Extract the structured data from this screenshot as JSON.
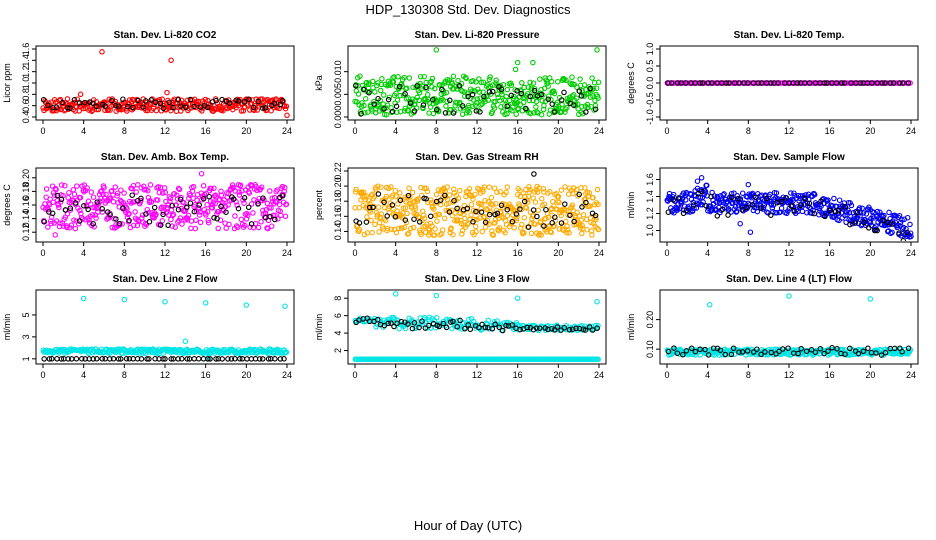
{
  "figure": {
    "title": "HDP_130308  Std. Dev. Diagnostics",
    "xlabel": "Hour of Day (UTC)"
  },
  "chart_data": [
    {
      "type": "scatter",
      "title": "Stan. Dev. Li-820 CO2",
      "ylabel": "Licor ppm",
      "xlim": [
        0,
        24
      ],
      "ylim": [
        0.4,
        1.6
      ],
      "xticks": [
        0,
        4,
        8,
        12,
        16,
        20,
        24
      ],
      "yticks": [
        0.4,
        0.6,
        0.8,
        1.0,
        1.2,
        1.4,
        1.6
      ],
      "ytick_labels": [
        "0.4",
        "0.6",
        "0.8",
        "1.0",
        "1.2",
        "1.4",
        "1.6"
      ],
      "series": [
        {
          "color": "#ff0000",
          "band": [
            0.5,
            0.72
          ],
          "count": 300,
          "outliers": [
            [
              5.8,
              1.55
            ],
            [
              12.6,
              1.4
            ],
            [
              12.2,
              0.83
            ],
            [
              24,
              0.43
            ],
            [
              3.7,
              0.8
            ]
          ]
        },
        {
          "color": "#000000",
          "band": [
            0.55,
            0.72
          ],
          "count": 55,
          "outliers": []
        }
      ]
    },
    {
      "type": "scatter",
      "title": "Stan. Dev. Li-820 Pressure",
      "ylabel": "kPa",
      "xlim": [
        0,
        24
      ],
      "ylim": [
        0,
        0.015
      ],
      "xticks": [
        0,
        4,
        8,
        12,
        16,
        20,
        24
      ],
      "yticks": [
        0,
        0.005,
        0.01
      ],
      "ytick_labels": [
        "0.000",
        "0.005",
        "0.010"
      ],
      "series": [
        {
          "color": "#00cc00",
          "band": [
            0.0005,
            0.009
          ],
          "count": 420,
          "outliers": [
            [
              8,
              0.0148
            ],
            [
              23.8,
              0.0148
            ],
            [
              16,
              0.012
            ],
            [
              17.5,
              0.012
            ],
            [
              15.8,
              0.0105
            ]
          ]
        },
        {
          "color": "#000000",
          "band": [
            0.0005,
            0.007
          ],
          "count": 55,
          "outliers": []
        }
      ]
    },
    {
      "type": "scatter",
      "title": "Stan. Dev. Li-820 Temp.",
      "ylabel": "degrees C",
      "xlim": [
        0,
        24
      ],
      "ylim": [
        -1,
        1
      ],
      "xticks": [
        0,
        4,
        8,
        12,
        16,
        20,
        24
      ],
      "yticks": [
        -1,
        -0.5,
        0,
        0.5,
        1
      ],
      "ytick_labels": [
        "-1.0",
        "-0.5",
        "0.0",
        "0.5",
        "1.0"
      ],
      "series": [
        {
          "color": "#ff00ff",
          "band": [
            0,
            0
          ],
          "count": 180,
          "outliers": []
        },
        {
          "color": "#000000",
          "band": [
            0,
            0
          ],
          "count": 55,
          "outliers": []
        }
      ]
    },
    {
      "type": "scatter",
      "title": "Stan. Dev. Amb. Box Temp.",
      "ylabel": "degrees C",
      "xlim": [
        0,
        24
      ],
      "ylim": [
        0.11,
        0.21
      ],
      "xticks": [
        0,
        4,
        8,
        12,
        16,
        20,
        24
      ],
      "yticks": [
        0.12,
        0.14,
        0.16,
        0.18,
        0.2
      ],
      "ytick_labels": [
        "0.12",
        "0.14",
        "0.16",
        "0.18",
        "0.20"
      ],
      "series": [
        {
          "color": "#ff00ff",
          "band": [
            0.125,
            0.19
          ],
          "count": 420,
          "outliers": [
            [
              15.6,
              0.206
            ],
            [
              1.2,
              0.116
            ]
          ]
        },
        {
          "color": "#000000",
          "band": [
            0.13,
            0.175
          ],
          "count": 55,
          "outliers": []
        }
      ]
    },
    {
      "type": "scatter",
      "title": "Stan. Dev. Gas Stream RH",
      "ylabel": "percent",
      "xlim": [
        0,
        24
      ],
      "ylim": [
        0.13,
        0.22
      ],
      "xticks": [
        0,
        4,
        8,
        12,
        16,
        20,
        24
      ],
      "yticks": [
        0.14,
        0.16,
        0.18,
        0.2,
        0.22
      ],
      "ytick_labels": [
        "0.14",
        "0.16",
        "0.18",
        "0.20",
        "0.22"
      ],
      "series": [
        {
          "color": "#ffaa00",
          "band": [
            0.135,
            0.2
          ],
          "count": 480,
          "outliers": []
        },
        {
          "color": "#000000",
          "band": [
            0.145,
            0.19
          ],
          "count": 55,
          "outliers": [
            [
              17.6,
              0.216
            ]
          ]
        }
      ]
    },
    {
      "type": "scatter",
      "title": "Stan. Dev. Sample Flow",
      "ylabel": "ml/min",
      "xlim": [
        0,
        24
      ],
      "ylim": [
        0.9,
        1.7
      ],
      "xticks": [
        0,
        4,
        8,
        12,
        16,
        20,
        24
      ],
      "yticks": [
        1.0,
        1.2,
        1.4,
        1.6
      ],
      "ytick_labels": [
        "1.0",
        "1.2",
        "1.4",
        "1.6"
      ],
      "series": [
        {
          "color": "#0000ee",
          "band": [
            1.2,
            1.45
          ],
          "count": 420,
          "trend": "flow",
          "outliers": [
            [
              3.0,
              1.58
            ],
            [
              3.4,
              1.62
            ],
            [
              8.0,
              1.54
            ],
            [
              7.2,
              1.08
            ],
            [
              8.2,
              0.98
            ],
            [
              24,
              0.93
            ]
          ]
        },
        {
          "color": "#000000",
          "band": [
            1.15,
            1.4
          ],
          "count": 50,
          "trend": "flow",
          "outliers": []
        }
      ]
    },
    {
      "type": "scatter",
      "title": "Stan. Dev. Line 2 Flow",
      "ylabel": "ml/min",
      "xlim": [
        0,
        24
      ],
      "ylim": [
        0.8,
        7
      ],
      "xticks": [
        0,
        4,
        8,
        12,
        16,
        20,
        24
      ],
      "yticks": [
        1,
        3,
        5
      ],
      "ytick_labels": [
        "1",
        "3",
        "5"
      ],
      "series": [
        {
          "color": "#00e5e5",
          "band": [
            1.5,
            1.9
          ],
          "count": 300,
          "outliers": [
            [
              4,
              6.5
            ],
            [
              8,
              6.4
            ],
            [
              12,
              6.2
            ],
            [
              16,
              6.1
            ],
            [
              20,
              5.9
            ],
            [
              23.8,
              5.8
            ],
            [
              14,
              2.6
            ],
            [
              16.3,
              1.0
            ]
          ]
        },
        {
          "color": "#000000",
          "band": [
            0.99,
            1.0
          ],
          "count": 60,
          "outliers": []
        }
      ]
    },
    {
      "type": "scatter",
      "title": "Stan. Dev. Line 3 Flow",
      "ylabel": "ml/min",
      "xlim": [
        0,
        24
      ],
      "ylim": [
        0.8,
        8.6
      ],
      "xticks": [
        0,
        4,
        8,
        12,
        16,
        20,
        24
      ],
      "yticks": [
        2,
        4,
        6,
        8
      ],
      "ytick_labels": [
        "2",
        "4",
        "6",
        "8"
      ],
      "series": [
        {
          "color": "#00e5e5",
          "band": [
            1.0,
            1.0
          ],
          "count": 260,
          "outliers": [
            [
              4,
              8.5
            ],
            [
              8,
              8.3
            ],
            [
              16,
              8.0
            ],
            [
              23.8,
              7.6
            ]
          ]
        },
        {
          "color": "#00e5e5",
          "band": [
            4.5,
            6.2
          ],
          "count": 200,
          "trend": "line3",
          "outliers": []
        },
        {
          "color": "#000000",
          "band": [
            4.5,
            6.0
          ],
          "count": 70,
          "trend": "line3",
          "outliers": []
        }
      ]
    },
    {
      "type": "scatter",
      "title": "Stan. Dev. Line 4 (LT) Flow",
      "ylabel": "ml/min",
      "xlim": [
        0,
        24
      ],
      "ylim": [
        0.06,
        0.29
      ],
      "xticks": [
        0,
        4,
        8,
        12,
        16,
        20,
        24
      ],
      "yticks": [
        0.1,
        0.2
      ],
      "ytick_labels": [
        "0.10",
        "0.20"
      ],
      "series": [
        {
          "color": "#00e5e5",
          "band": [
            0.08,
            0.1
          ],
          "count": 320,
          "outliers": [
            [
              4.2,
              0.25
            ],
            [
              12,
              0.28
            ],
            [
              20,
              0.27
            ]
          ]
        },
        {
          "color": "#000000",
          "band": [
            0.08,
            0.105
          ],
          "count": 55,
          "outliers": []
        }
      ]
    }
  ]
}
